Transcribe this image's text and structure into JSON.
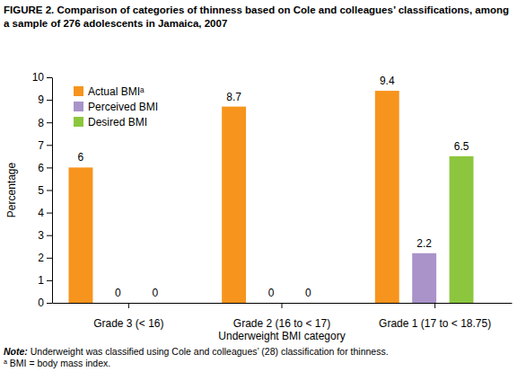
{
  "chart_data": {
    "type": "bar",
    "title": "FIGURE 2. Comparison of categories of thinness based on Cole and colleagues’ classifications, among a sample of 276 adolescents in Jamaica, 2007",
    "x_label": "Underweight BMI category",
    "y_label": "Percentage",
    "categories": [
      "Grade 3 (< 16)",
      "Grade 2 (16 to < 17)",
      "Grade 1 (17 to < 18.75)"
    ],
    "series": [
      {
        "name": "Actual BMIᵃ",
        "color": "#f7941d",
        "values": [
          6,
          8.7,
          9.4
        ]
      },
      {
        "name": "Perceived BMI",
        "color": "#a993c9",
        "values": [
          0,
          0,
          2.2
        ]
      },
      {
        "name": "Desired BMI",
        "color": "#8cc63e",
        "values": [
          0,
          0,
          6.5
        ]
      }
    ],
    "ylim": [
      0,
      10
    ],
    "yticks": [
      0,
      1,
      2,
      3,
      4,
      5,
      6,
      7,
      8,
      9,
      10
    ],
    "grid": false,
    "legend": "top-left",
    "data_labels": true,
    "notes": [
      "Note: Underweight was classified using Cole and colleagues’ (28) classification for thinness.",
      "ᵃ BMI = body mass index."
    ]
  }
}
